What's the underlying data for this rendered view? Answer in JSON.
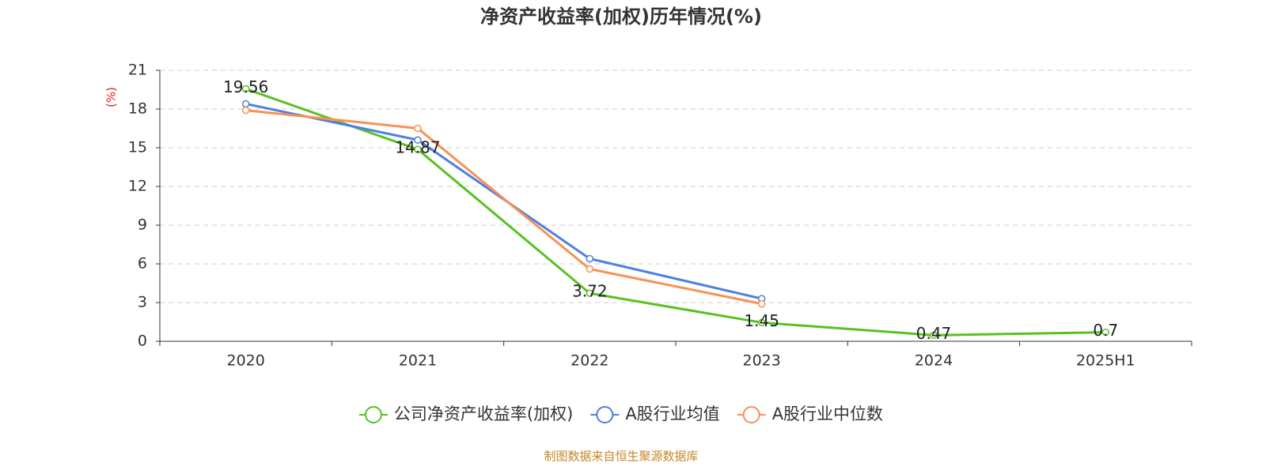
{
  "chart_data": {
    "type": "line",
    "title": "净资产收益率(加权)历年情况(%)",
    "y_label": "(%)",
    "source": "制图数据来自恒生聚源数据库",
    "categories": [
      "2020",
      "2021",
      "2022",
      "2023",
      "2024",
      "2025H1"
    ],
    "series": [
      {
        "name": "公司净资产收益率(加权)",
        "color": "#56c21f",
        "values": [
          19.56,
          14.87,
          3.72,
          1.45,
          0.47,
          0.7
        ],
        "show_labels": true
      },
      {
        "name": "A股行业均值",
        "color": "#4d80e0",
        "values": [
          18.4,
          15.6,
          6.4,
          3.3,
          null,
          null
        ]
      },
      {
        "name": "A股行业中位数",
        "color": "#f89055",
        "values": [
          17.9,
          16.5,
          5.6,
          2.9,
          null,
          null
        ]
      }
    ],
    "ylim": [
      0,
      21
    ],
    "yticks": [
      0,
      3,
      6,
      9,
      12,
      15,
      18,
      21
    ],
    "grid": true
  }
}
